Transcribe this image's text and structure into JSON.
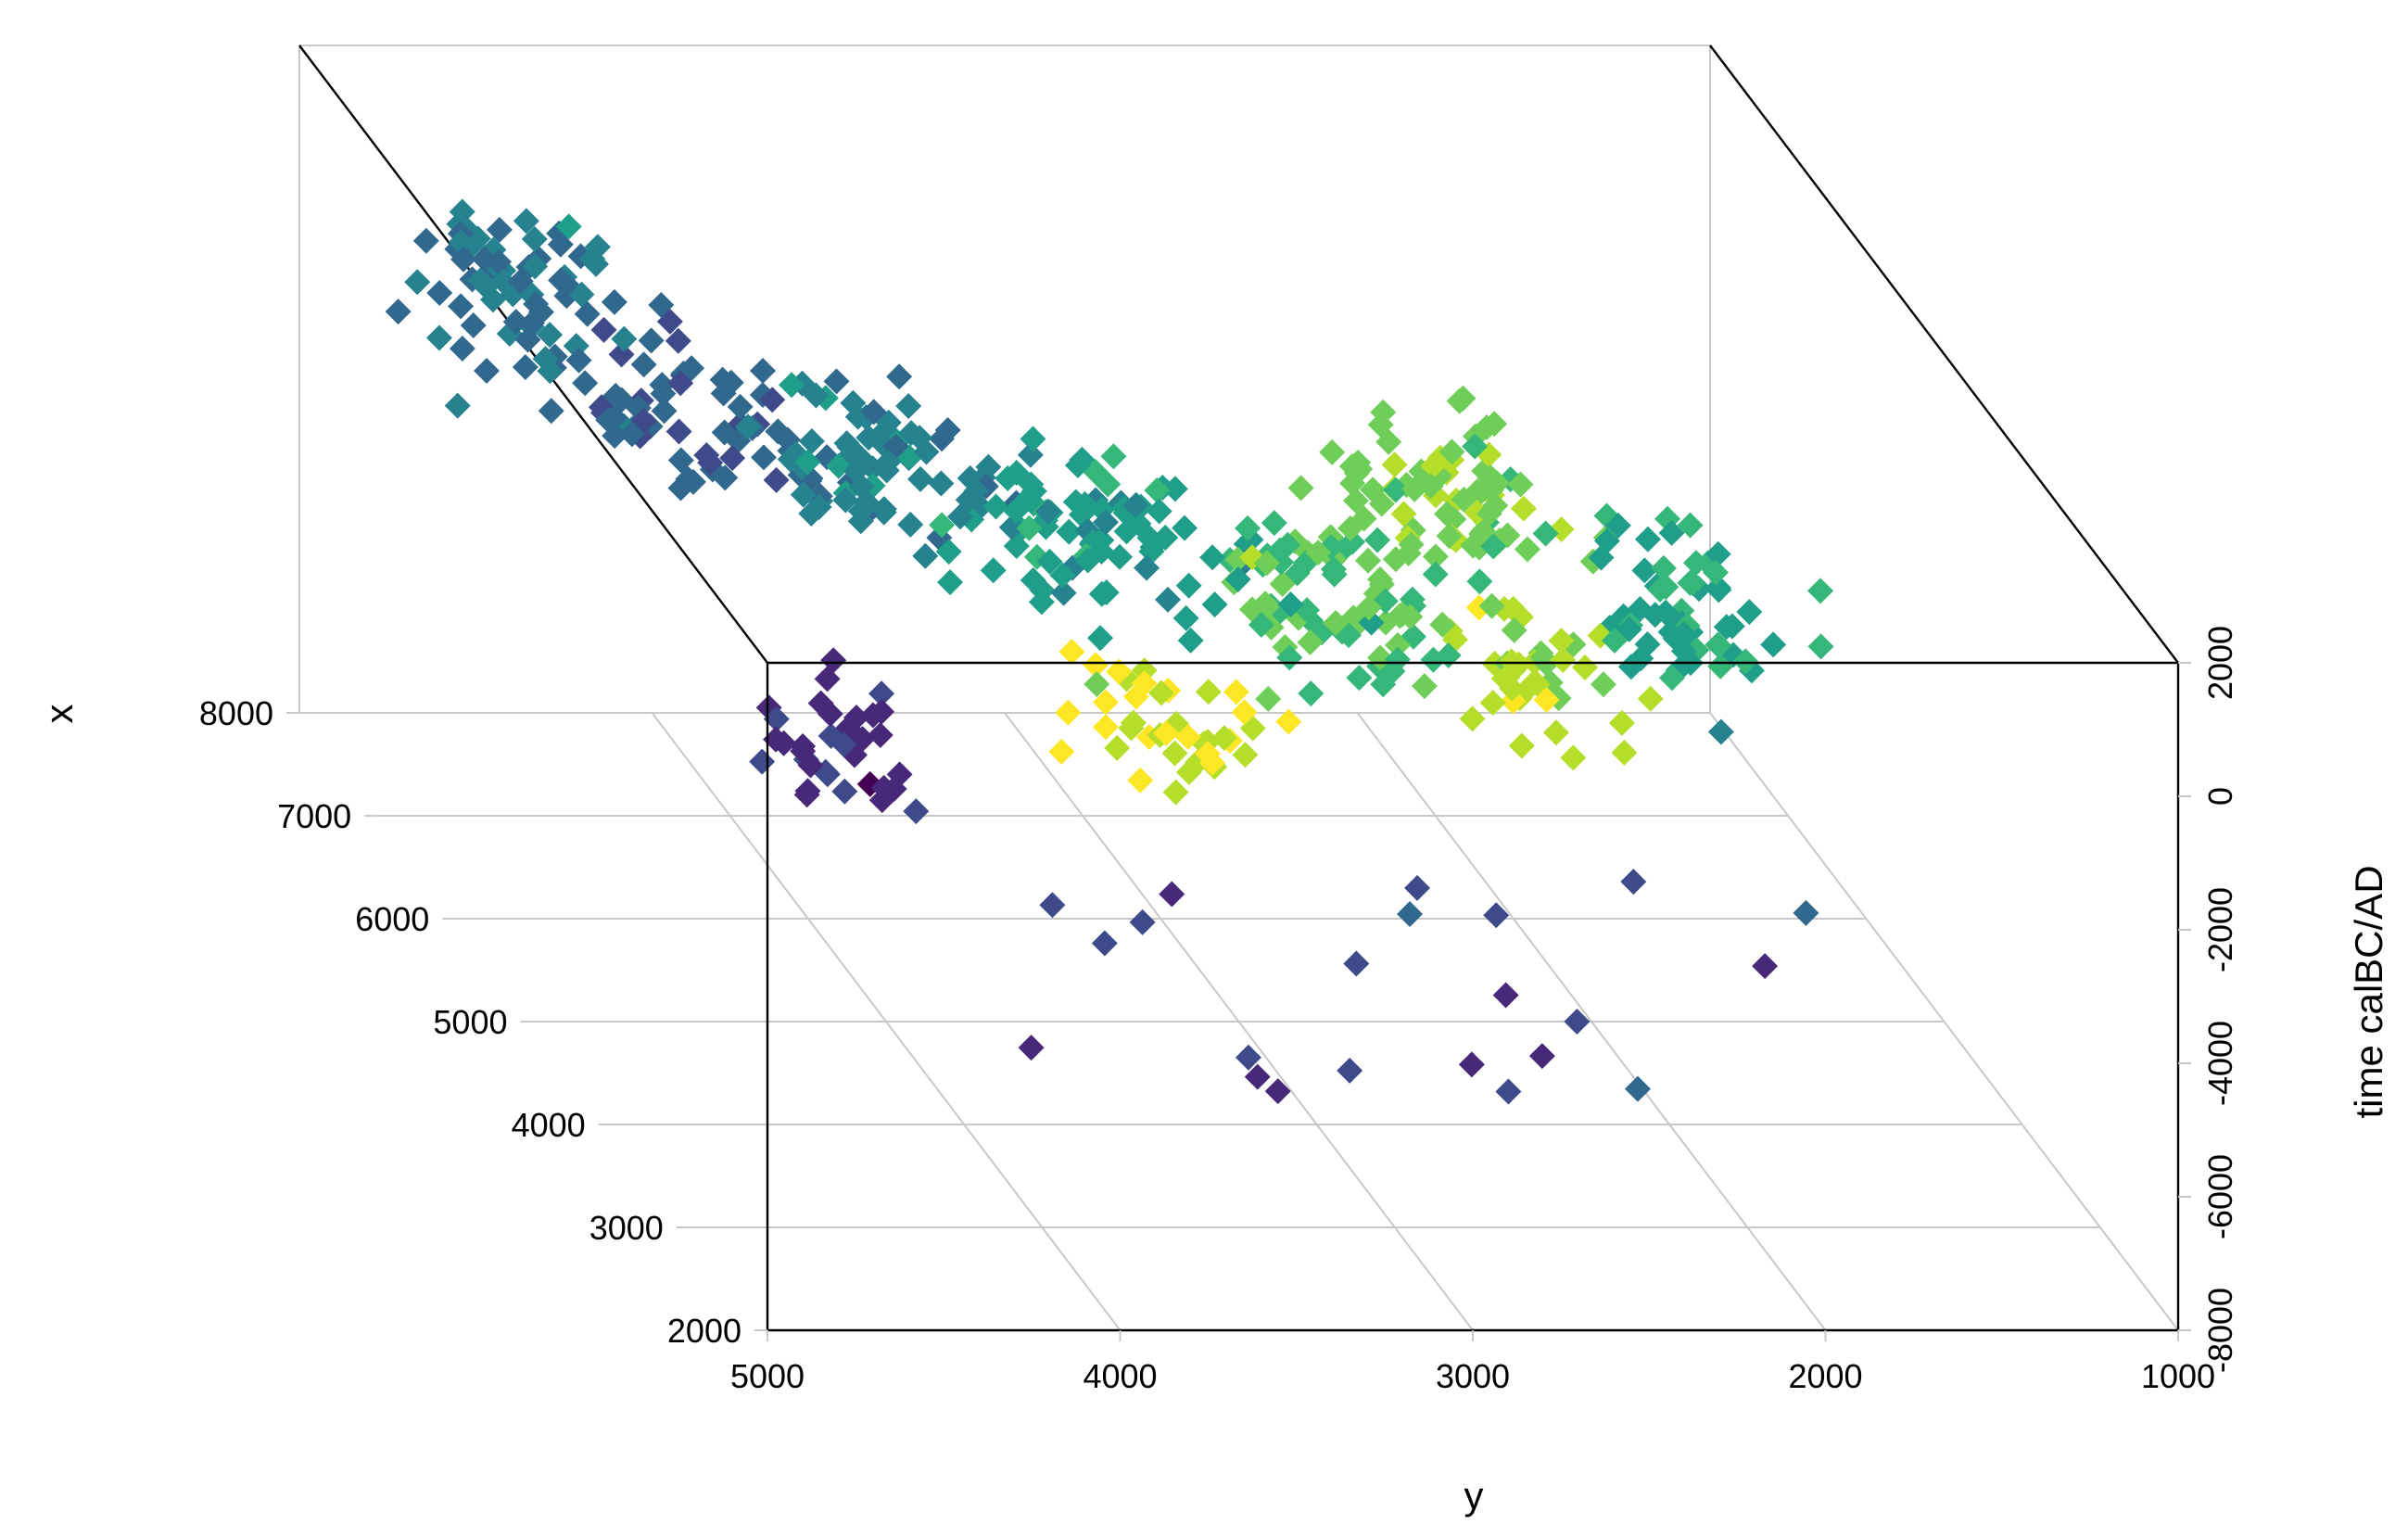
{
  "chart_data": {
    "type": "scatter",
    "projection": "3d-oblique",
    "x_axis": {
      "title": "x",
      "ticks": [
        "2000",
        "3000",
        "4000",
        "5000",
        "6000",
        "7000",
        "8000"
      ],
      "range": [
        2000,
        8000
      ]
    },
    "y_axis": {
      "title": "y",
      "ticks": [
        "5000",
        "4000",
        "3000",
        "2000",
        "1000"
      ],
      "range": [
        1000,
        5000
      ]
    },
    "z_axis": {
      "title": "time calBC/AD",
      "ticks": [
        "-8000",
        "-6000",
        "-4000",
        "-2000",
        "0",
        "2000"
      ],
      "range": [
        -8000,
        2000
      ]
    },
    "grid": true,
    "marker": "diamond",
    "colormap": [
      "#440154",
      "#482878",
      "#3e4a89",
      "#31688e",
      "#26828e",
      "#1f9e89",
      "#35b779",
      "#6ece58",
      "#b5de2b",
      "#fde725"
    ],
    "points": []
  }
}
